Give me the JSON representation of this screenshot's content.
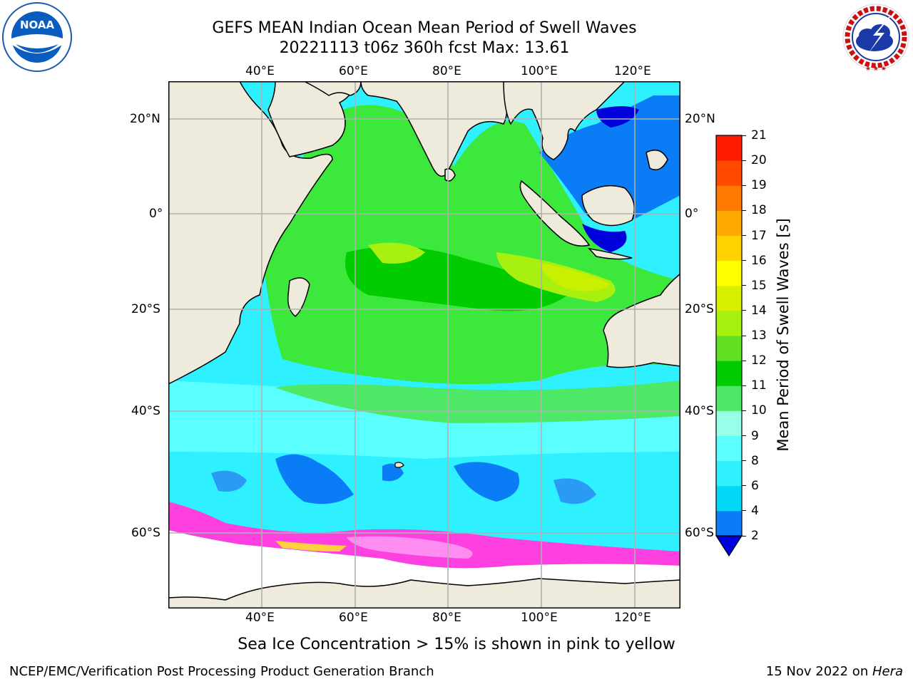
{
  "header": {
    "title_line1": "GEFS MEAN Indian Ocean Mean Period of Swell Waves",
    "title_line2": "20221113 t06z 360h fcst   Max: 13.61"
  },
  "logos": {
    "noaa_text": "NOAA",
    "noaa_ring_text": "NATIONAL OCEANIC AND ATMOSPHERIC ADMINISTRATION · U.S. DEPARTMENT OF COMMERCE",
    "nws_ring_text": "NATIONAL WEATHER SERVICE"
  },
  "map": {
    "lon_labels": [
      "40°E",
      "60°E",
      "80°E",
      "100°E",
      "120°E"
    ],
    "lat_labels": [
      "20°N",
      "0°",
      "20°S",
      "40°S",
      "60°S"
    ],
    "lon_range": [
      20,
      130
    ],
    "lat_range": [
      -72,
      27
    ],
    "lon_ticks": [
      40,
      60,
      80,
      100,
      120
    ],
    "lat_ticks": [
      20,
      0,
      -20,
      -40,
      -60
    ],
    "grid": true
  },
  "colorbar": {
    "label": "Mean Period of Swell Waves [s]",
    "ticks": [
      "2",
      "4",
      "6",
      "8",
      "9",
      "10",
      "11",
      "12",
      "13",
      "14",
      "15",
      "16",
      "17",
      "18",
      "19",
      "20",
      "21"
    ],
    "colors": [
      "#0a7cf5",
      "#00d8f5",
      "#2ef0ff",
      "#5affff",
      "#9affe8",
      "#4de866",
      "#00cc00",
      "#60e020",
      "#a8f010",
      "#d8f000",
      "#ffff00",
      "#ffd200",
      "#ffaa00",
      "#ff7a00",
      "#ff4a00",
      "#ff1a00"
    ],
    "extend_color": "#0000dd"
  },
  "footer": {
    "note": "Sea Ice Concentration > 15% is shown in pink to yellow",
    "credit": "NCEP/EMC/Verification Post Processing Product Generation Branch",
    "date": "15 Nov 2022 on ",
    "machine": "Hera"
  }
}
